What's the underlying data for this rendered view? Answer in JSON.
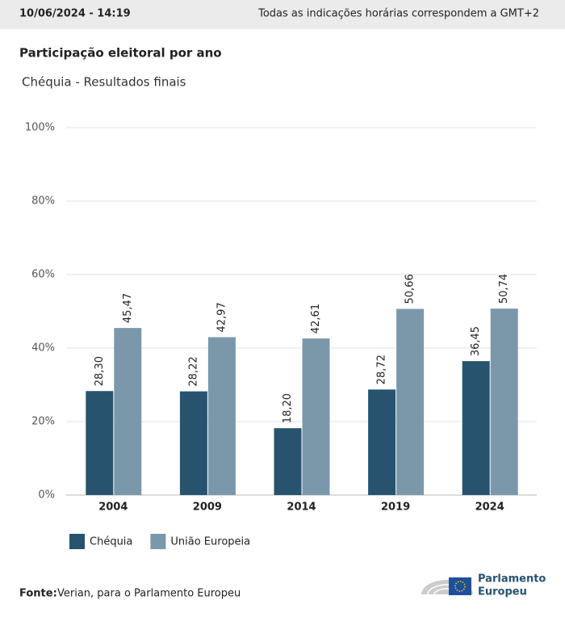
{
  "header": {
    "timestamp": "10/06/2024 - 14:19",
    "timezone_note": "Todas as indicações horárias correspondem a GMT+2"
  },
  "chart_data": {
    "type": "bar",
    "title": "Participação eleitoral por ano",
    "subtitle": "Chéquia - Resultados finais",
    "categories": [
      "2004",
      "2009",
      "2014",
      "2019",
      "2024"
    ],
    "series": [
      {
        "name": "Chéquia",
        "color": "#27536f",
        "values": [
          28.3,
          28.22,
          18.2,
          28.72,
          36.45
        ],
        "value_labels": [
          "28,30",
          "28,22",
          "18,20",
          "28,72",
          "36,45"
        ]
      },
      {
        "name": "União Europeia",
        "color": "#7b98ab",
        "values": [
          45.47,
          42.97,
          42.61,
          50.66,
          50.74
        ],
        "value_labels": [
          "45,47",
          "42,97",
          "42,61",
          "50,66",
          "50,74"
        ]
      }
    ],
    "ylim": [
      0,
      100
    ],
    "yticks": [
      {
        "value": 0,
        "label": "0%"
      },
      {
        "value": 20,
        "label": "20%"
      },
      {
        "value": 40,
        "label": "40%"
      },
      {
        "value": 60,
        "label": "60%"
      },
      {
        "value": 80,
        "label": "80%"
      },
      {
        "value": 100,
        "label": "100%"
      }
    ],
    "grid": true
  },
  "source": {
    "label": "Fonte:",
    "text": "Verian, para o Parlamento Europeu"
  },
  "logo": {
    "line1": "Parlamento",
    "line2": "Europeu"
  }
}
